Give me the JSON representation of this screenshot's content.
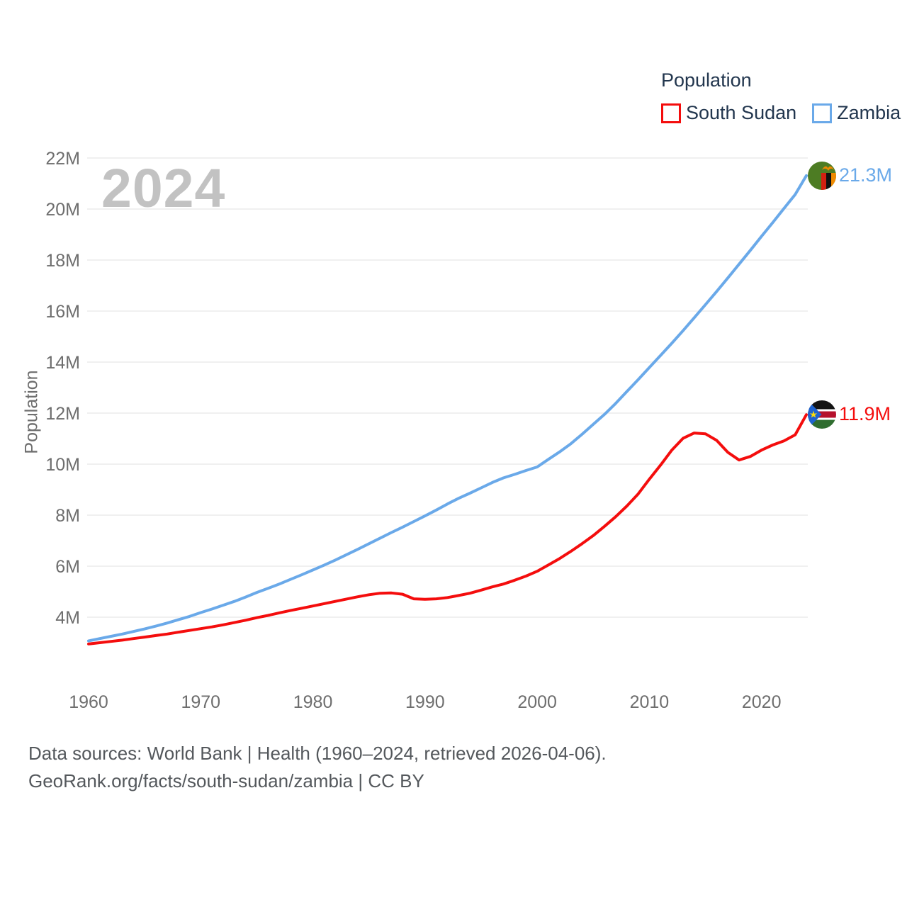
{
  "watermark": "2024",
  "legend": {
    "title": "Population",
    "items": [
      {
        "label": "South Sudan",
        "color": "#f40d0d"
      },
      {
        "label": "Zambia",
        "color": "#6aa9e9"
      }
    ]
  },
  "footer": {
    "line1": "Data sources: World Bank | Health (1960–2024, retrieved 2026-04-06).",
    "line2": "GeoRank.org/facts/south-sudan/zambia | CC BY"
  },
  "chart_data": {
    "type": "line",
    "title": "Population",
    "ylabel": "Population",
    "xlabel": "",
    "grid": "horizontal",
    "legend_position": "top-right",
    "xlim": [
      1960,
      2024
    ],
    "ylim": [
      2.6,
      22.8
    ],
    "y_tick_values": [
      4,
      6,
      8,
      10,
      12,
      14,
      16,
      18,
      20,
      22
    ],
    "y_tick_labels": [
      "4M",
      "6M",
      "8M",
      "10M",
      "12M",
      "14M",
      "16M",
      "18M",
      "20M",
      "22M"
    ],
    "x_tick_values": [
      1960,
      1970,
      1980,
      1990,
      2000,
      2010,
      2020
    ],
    "x_tick_labels": [
      "1960",
      "1970",
      "1980",
      "1990",
      "2000",
      "2010",
      "2020"
    ],
    "x": [
      1960,
      1961,
      1962,
      1963,
      1964,
      1965,
      1966,
      1967,
      1968,
      1969,
      1970,
      1971,
      1972,
      1973,
      1974,
      1975,
      1976,
      1977,
      1978,
      1979,
      1980,
      1981,
      1982,
      1983,
      1984,
      1985,
      1986,
      1987,
      1988,
      1989,
      1990,
      1991,
      1992,
      1993,
      1994,
      1995,
      1996,
      1997,
      1998,
      1999,
      2000,
      2001,
      2002,
      2003,
      2004,
      2005,
      2006,
      2007,
      2008,
      2009,
      2010,
      2011,
      2012,
      2013,
      2014,
      2015,
      2016,
      2017,
      2018,
      2019,
      2020,
      2021,
      2022,
      2023,
      2024
    ],
    "unit": "millions",
    "series": [
      {
        "name": "South Sudan",
        "color": "#f40d0d",
        "end_label": "11.9M",
        "flag": "south-sudan",
        "values": [
          2.95,
          3.0,
          3.05,
          3.1,
          3.16,
          3.22,
          3.28,
          3.34,
          3.41,
          3.48,
          3.55,
          3.62,
          3.7,
          3.79,
          3.88,
          3.98,
          4.07,
          4.17,
          4.26,
          4.35,
          4.44,
          4.53,
          4.62,
          4.71,
          4.8,
          4.88,
          4.94,
          4.95,
          4.9,
          4.72,
          4.7,
          4.72,
          4.77,
          4.85,
          4.94,
          5.06,
          5.19,
          5.3,
          5.45,
          5.61,
          5.8,
          6.05,
          6.3,
          6.58,
          6.88,
          7.2,
          7.56,
          7.94,
          8.36,
          8.83,
          9.41,
          9.96,
          10.55,
          11.01,
          11.22,
          11.19,
          10.93,
          10.46,
          10.16,
          10.3,
          10.55,
          10.75,
          10.91,
          11.15,
          11.94
        ]
      },
      {
        "name": "Zambia",
        "color": "#6aa9e9",
        "end_label": "21.3M",
        "flag": "zambia",
        "values": [
          3.07,
          3.16,
          3.25,
          3.34,
          3.44,
          3.54,
          3.65,
          3.77,
          3.9,
          4.03,
          4.18,
          4.32,
          4.47,
          4.62,
          4.79,
          4.97,
          5.13,
          5.3,
          5.48,
          5.66,
          5.85,
          6.04,
          6.24,
          6.45,
          6.66,
          6.88,
          7.1,
          7.32,
          7.53,
          7.75,
          7.97,
          8.2,
          8.44,
          8.66,
          8.86,
          9.07,
          9.28,
          9.46,
          9.6,
          9.75,
          9.89,
          10.19,
          10.48,
          10.8,
          11.17,
          11.56,
          11.95,
          12.38,
          12.85,
          13.31,
          13.79,
          14.26,
          14.74,
          15.23,
          15.74,
          16.25,
          16.77,
          17.3,
          17.84,
          18.38,
          18.93,
          19.47,
          20.02,
          20.57,
          21.31
        ]
      }
    ]
  }
}
